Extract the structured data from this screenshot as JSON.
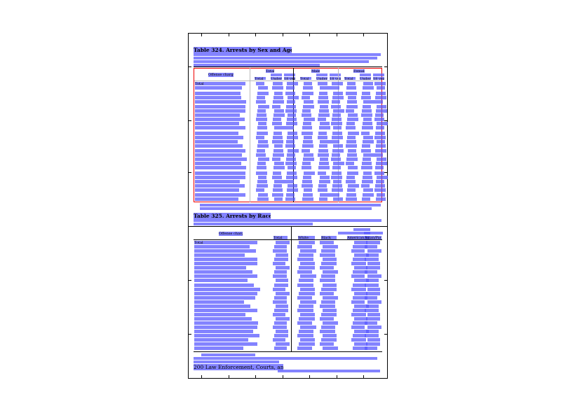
{
  "table1": {
    "title": "Table 324. Arrests by Sex and Age: 2009",
    "stub_header": "Offense charged",
    "groups": [
      "Total",
      "Male",
      "Female"
    ],
    "subcols": [
      "Total",
      "Under 18 years",
      "18 years and over"
    ],
    "first_row": "Total"
  },
  "table2": {
    "title": "Table 325. Arrests by Race: 2009",
    "stub_header": "Offense charged",
    "columns": [
      "Total",
      "White",
      "Black",
      "American Indian/Alaskan Native",
      "Asian/Pacific Islander"
    ],
    "first_row": "Total"
  },
  "footer": {
    "section": "200 Law Enforcement, Courts, and Prisons"
  },
  "colors": {
    "highlight": "#5a5aff",
    "selection": "#ee0000"
  }
}
